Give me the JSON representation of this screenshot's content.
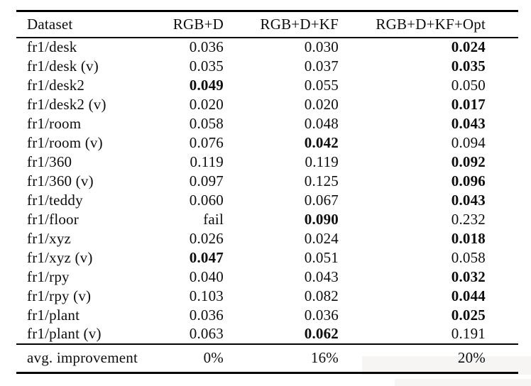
{
  "page": {
    "background_color": "#ffffff",
    "text_color": "#0d0d0d",
    "rule_color": "#000000"
  },
  "table": {
    "columns": [
      "Dataset",
      "RGB+D",
      "RGB+D+KF",
      "RGB+D+KF+Opt"
    ],
    "rows": [
      {
        "dataset": "fr1/desk",
        "values": [
          "0.036",
          "0.030",
          "0.024"
        ],
        "bold": [
          false,
          false,
          true
        ]
      },
      {
        "dataset": "fr1/desk (v)",
        "values": [
          "0.035",
          "0.037",
          "0.035"
        ],
        "bold": [
          false,
          false,
          true
        ]
      },
      {
        "dataset": "fr1/desk2",
        "values": [
          "0.049",
          "0.055",
          "0.050"
        ],
        "bold": [
          true,
          false,
          false
        ]
      },
      {
        "dataset": "fr1/desk2 (v)",
        "values": [
          "0.020",
          "0.020",
          "0.017"
        ],
        "bold": [
          false,
          false,
          true
        ]
      },
      {
        "dataset": "fr1/room",
        "values": [
          "0.058",
          "0.048",
          "0.043"
        ],
        "bold": [
          false,
          false,
          true
        ]
      },
      {
        "dataset": "fr1/room (v)",
        "values": [
          "0.076",
          "0.042",
          "0.094"
        ],
        "bold": [
          false,
          true,
          false
        ]
      },
      {
        "dataset": "fr1/360",
        "values": [
          "0.119",
          "0.119",
          "0.092"
        ],
        "bold": [
          false,
          false,
          true
        ]
      },
      {
        "dataset": "fr1/360 (v)",
        "values": [
          "0.097",
          "0.125",
          "0.096"
        ],
        "bold": [
          false,
          false,
          true
        ]
      },
      {
        "dataset": "fr1/teddy",
        "values": [
          "0.060",
          "0.067",
          "0.043"
        ],
        "bold": [
          false,
          false,
          true
        ]
      },
      {
        "dataset": "fr1/floor",
        "values": [
          "fail",
          "0.090",
          "0.232"
        ],
        "bold": [
          false,
          true,
          false
        ]
      },
      {
        "dataset": "fr1/xyz",
        "values": [
          "0.026",
          "0.024",
          "0.018"
        ],
        "bold": [
          false,
          false,
          true
        ]
      },
      {
        "dataset": "fr1/xyz (v)",
        "values": [
          "0.047",
          "0.051",
          "0.058"
        ],
        "bold": [
          true,
          false,
          false
        ]
      },
      {
        "dataset": "fr1/rpy",
        "values": [
          "0.040",
          "0.043",
          "0.032"
        ],
        "bold": [
          false,
          false,
          true
        ]
      },
      {
        "dataset": "fr1/rpy (v)",
        "values": [
          "0.103",
          "0.082",
          "0.044"
        ],
        "bold": [
          false,
          false,
          true
        ]
      },
      {
        "dataset": "fr1/plant",
        "values": [
          "0.036",
          "0.036",
          "0.025"
        ],
        "bold": [
          false,
          false,
          true
        ]
      },
      {
        "dataset": "fr1/plant (v)",
        "values": [
          "0.063",
          "0.062",
          "0.191"
        ],
        "bold": [
          false,
          true,
          false
        ]
      }
    ],
    "footer": {
      "label": "avg. improvement",
      "values": [
        "0%",
        "16%",
        "20%"
      ]
    }
  }
}
